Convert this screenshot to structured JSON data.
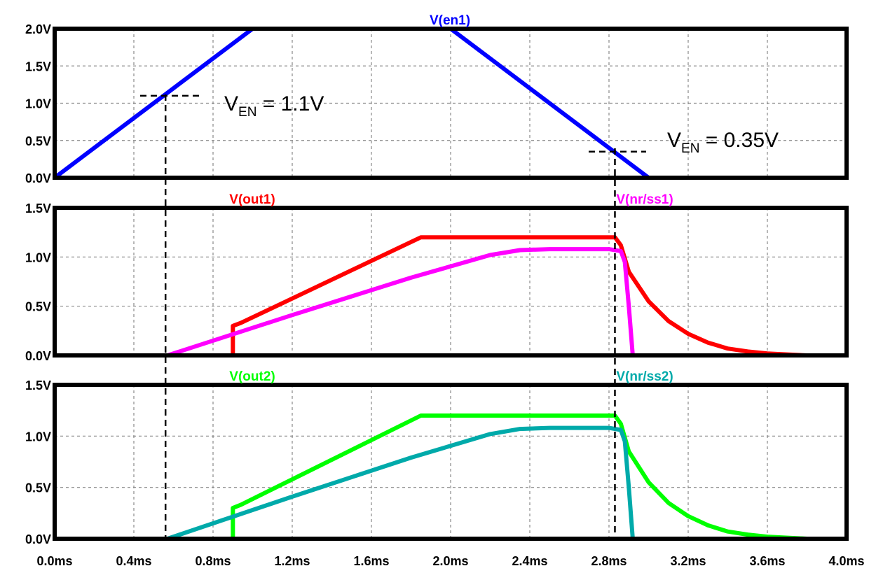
{
  "chart_data": [
    {
      "type": "line",
      "panel": "top",
      "ylim": [
        0,
        2.0
      ],
      "xlim": [
        0,
        4.0
      ],
      "yticks": [
        "0.0V",
        "0.5V",
        "1.0V",
        "1.5V",
        "2.0V"
      ],
      "grid": true,
      "series": [
        {
          "name": "V(en1)",
          "color": "#0000ff",
          "x": [
            0.0,
            1.0,
            2.0,
            3.0,
            4.0
          ],
          "y": [
            0.0,
            2.0,
            2.0,
            0.0,
            0.0
          ]
        }
      ],
      "annotations": [
        {
          "main": "V",
          "sub": "EN",
          "rest": " = 1.1V",
          "x": 0.56,
          "y": 1.1
        },
        {
          "main": "V",
          "sub": "EN",
          "rest": " = 0.35V",
          "x": 2.83,
          "y": 0.35
        }
      ]
    },
    {
      "type": "line",
      "panel": "middle",
      "ylim": [
        0,
        1.5
      ],
      "xlim": [
        0,
        4.0
      ],
      "yticks": [
        "0.0V",
        "0.5V",
        "1.0V",
        "1.5V"
      ],
      "grid": true,
      "series": [
        {
          "name": "V(out1)",
          "color": "#ff0000",
          "x": [
            0.0,
            0.56,
            0.9,
            0.9,
            0.94,
            1.85,
            2.8,
            2.83,
            2.86,
            2.9,
            3.0,
            3.1,
            3.2,
            3.3,
            3.4,
            3.5,
            3.6,
            3.8
          ],
          "y": [
            0.0,
            0.0,
            0.0,
            0.3,
            0.33,
            1.2,
            1.2,
            1.2,
            1.12,
            0.85,
            0.55,
            0.35,
            0.22,
            0.13,
            0.07,
            0.04,
            0.02,
            0.0
          ]
        },
        {
          "name": "V(nr/ss1)",
          "color": "#ff00ff",
          "x": [
            0.0,
            0.57,
            1.2,
            1.8,
            2.2,
            2.35,
            2.5,
            2.8,
            2.86,
            2.88,
            2.9,
            2.92,
            4.0
          ],
          "y": [
            0.0,
            0.0,
            0.41,
            0.79,
            1.02,
            1.07,
            1.08,
            1.08,
            1.06,
            0.95,
            0.5,
            0.0,
            0.0
          ]
        }
      ]
    },
    {
      "type": "line",
      "panel": "bottom",
      "ylim": [
        0,
        1.5
      ],
      "xlim": [
        0,
        4.0
      ],
      "yticks": [
        "0.0V",
        "0.5V",
        "1.0V",
        "1.5V"
      ],
      "xticks": [
        "0.0ms",
        "0.4ms",
        "0.8ms",
        "1.2ms",
        "1.6ms",
        "2.0ms",
        "2.4ms",
        "2.8ms",
        "3.2ms",
        "3.6ms",
        "4.0ms"
      ],
      "grid": true,
      "series": [
        {
          "name": "V(out2)",
          "color": "#00ff00",
          "x": [
            0.0,
            0.56,
            0.9,
            0.9,
            0.94,
            1.85,
            2.8,
            2.83,
            2.86,
            2.9,
            3.0,
            3.1,
            3.2,
            3.3,
            3.4,
            3.5,
            3.6,
            3.8
          ],
          "y": [
            0.0,
            0.0,
            0.0,
            0.3,
            0.33,
            1.2,
            1.2,
            1.2,
            1.12,
            0.85,
            0.55,
            0.35,
            0.22,
            0.13,
            0.07,
            0.04,
            0.02,
            0.0
          ]
        },
        {
          "name": "V(nr/ss2)",
          "color": "#00aaaa",
          "x": [
            0.0,
            0.57,
            1.2,
            1.8,
            2.2,
            2.35,
            2.5,
            2.8,
            2.86,
            2.88,
            2.9,
            2.92,
            4.0
          ],
          "y": [
            0.0,
            0.0,
            0.41,
            0.79,
            1.02,
            1.07,
            1.08,
            1.08,
            1.06,
            0.95,
            0.5,
            0.0,
            0.0
          ]
        }
      ]
    }
  ],
  "markers": {
    "vertical_lines_ms": [
      0.56,
      2.83
    ]
  }
}
